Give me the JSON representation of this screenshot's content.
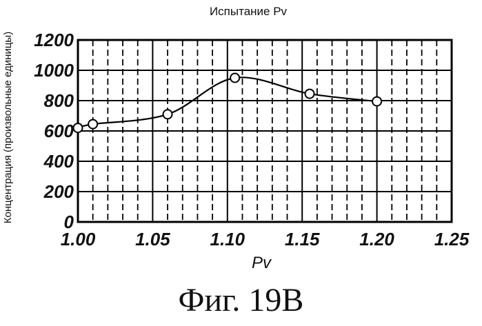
{
  "caption": "Фиг. 19В",
  "chart_data": {
    "type": "line",
    "title": "Испытание Pv",
    "xlabel": "Pv",
    "ylabel": "Концентрация (произвольные единицы)",
    "xlim": [
      1.0,
      1.25
    ],
    "ylim": [
      0,
      1200
    ],
    "xticks": [
      1.0,
      1.05,
      1.1,
      1.15,
      1.2,
      1.25
    ],
    "xtick_labels": [
      "1.00",
      "1.05",
      "1.10",
      "1.15",
      "1.20",
      "1.25"
    ],
    "yticks": [
      0,
      200,
      400,
      600,
      800,
      1000,
      1200
    ],
    "ytick_labels": [
      "0",
      "200",
      "400",
      "600",
      "800",
      "1000",
      "1200"
    ],
    "grid": true,
    "series": [
      {
        "name": "Pv",
        "x": [
          1.0,
          1.01,
          1.06,
          1.105,
          1.155,
          1.2
        ],
        "y": [
          620,
          645,
          710,
          950,
          845,
          795
        ],
        "marker": "circle",
        "smooth": true
      }
    ]
  }
}
